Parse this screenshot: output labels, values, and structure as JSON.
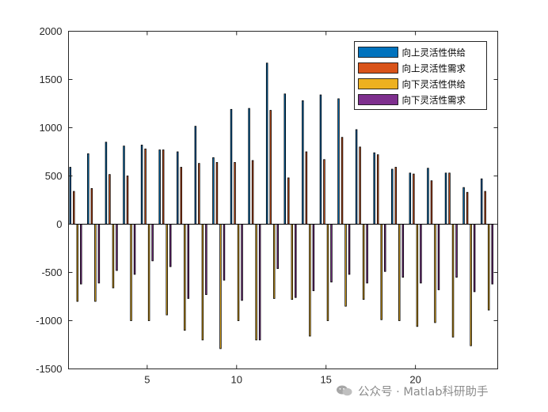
{
  "chart_data": {
    "type": "bar",
    "x": [
      1,
      2,
      3,
      4,
      5,
      6,
      7,
      8,
      9,
      10,
      11,
      12,
      13,
      14,
      15,
      16,
      17,
      18,
      19,
      20,
      21,
      22,
      23,
      24
    ],
    "xlim": [
      0.6,
      24.6
    ],
    "xticks": [
      5,
      10,
      15,
      20
    ],
    "ylim": [
      -1500,
      2000
    ],
    "yticks": [
      -1500,
      -1000,
      -500,
      0,
      500,
      1000,
      1500,
      2000
    ],
    "series": [
      {
        "name": "向上灵活性供给",
        "color": "#0072BD",
        "values": [
          590,
          730,
          850,
          810,
          820,
          770,
          750,
          1015,
          690,
          1190,
          1200,
          1670,
          1350,
          1280,
          1340,
          1300,
          980,
          740,
          570,
          530,
          580,
          530,
          380,
          470
        ]
      },
      {
        "name": "向上灵活性需求",
        "color": "#D95319",
        "values": [
          340,
          370,
          515,
          500,
          780,
          770,
          590,
          630,
          640,
          640,
          660,
          1180,
          480,
          750,
          670,
          900,
          800,
          720,
          590,
          520,
          450,
          530,
          330,
          340
        ]
      },
      {
        "name": "向下灵活性供给",
        "color": "#EDB120",
        "values": [
          -800,
          -800,
          -660,
          -1000,
          -1000,
          -940,
          -1100,
          -1200,
          -1290,
          -1000,
          -1200,
          -770,
          -780,
          -1160,
          -1000,
          -850,
          -780,
          -990,
          -1000,
          -1060,
          -1020,
          -1170,
          -1260,
          -890
        ]
      },
      {
        "name": "向下灵活性需求",
        "color": "#7E2F8E",
        "values": [
          -620,
          -610,
          -480,
          -520,
          -380,
          -440,
          -770,
          -730,
          -580,
          -790,
          -1200,
          -460,
          -760,
          -690,
          -600,
          -520,
          -610,
          -490,
          -550,
          -610,
          -680,
          -550,
          -700,
          -620
        ]
      }
    ],
    "legend_position": "top-right"
  },
  "watermark": {
    "text": "公众号 · Matlab科研助手"
  }
}
